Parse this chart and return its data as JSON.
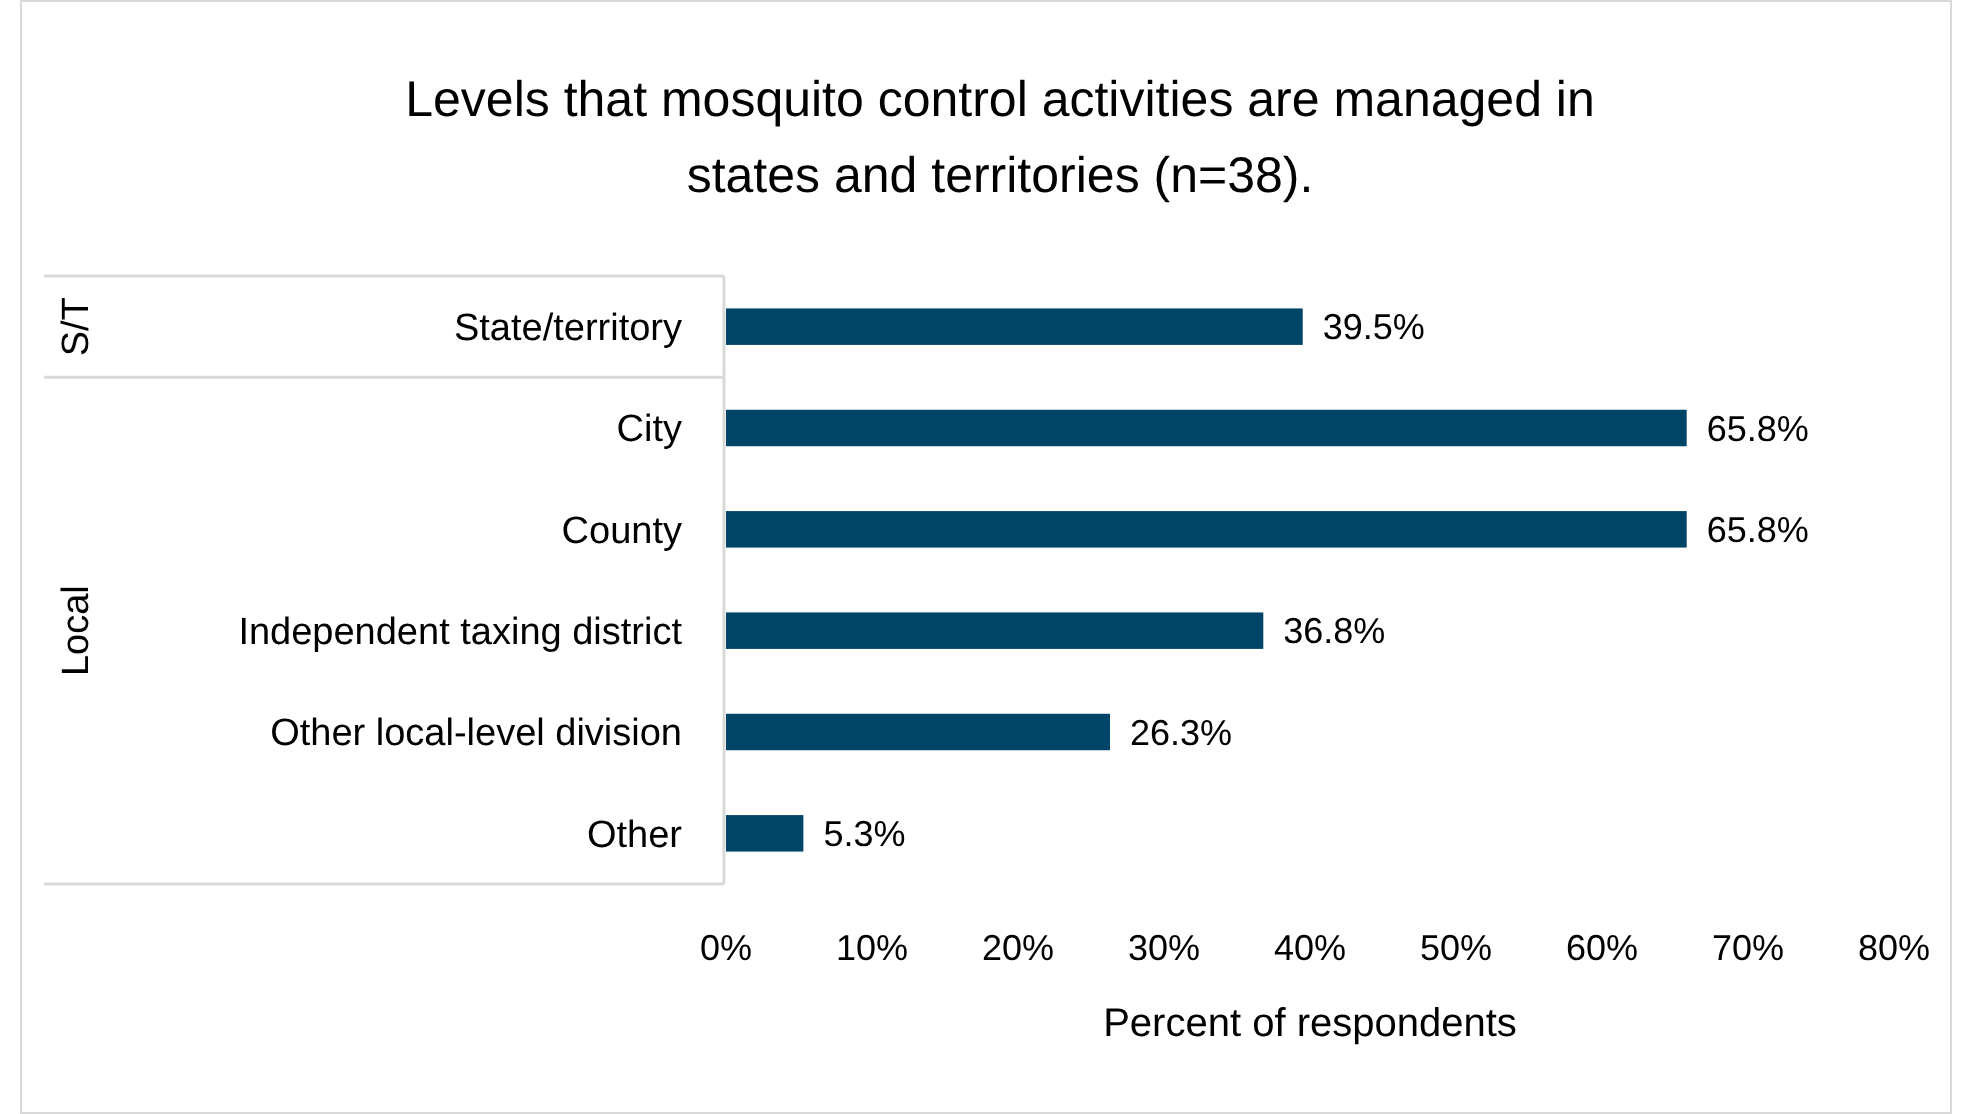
{
  "chart_data": {
    "type": "bar",
    "orientation": "horizontal",
    "title": "Levels that mosquito control activities are managed in states and territories (n=38).",
    "xlabel": "Percent of respondents",
    "categories": [
      "State/territory",
      "City",
      "County",
      "Independent taxing district",
      "Other local-level division",
      "Other"
    ],
    "values": [
      39.5,
      65.8,
      65.8,
      36.8,
      26.3,
      5.3
    ],
    "value_labels": [
      "39.5%",
      "65.8%",
      "65.8%",
      "36.8%",
      "26.3%",
      "5.3%"
    ],
    "color": "#004467",
    "xlim": [
      0,
      80
    ],
    "xticks": [
      {
        "value": 0,
        "label": "0%"
      },
      {
        "value": 10,
        "label": "10%"
      },
      {
        "value": 20,
        "label": "20%"
      },
      {
        "value": 30,
        "label": "30%"
      },
      {
        "value": 40,
        "label": "40%"
      },
      {
        "value": 50,
        "label": "50%"
      },
      {
        "value": 60,
        "label": "60%"
      },
      {
        "value": 70,
        "label": "70%"
      },
      {
        "value": 80,
        "label": "80%"
      }
    ],
    "annotations": [
      "S/T",
      "Local"
    ]
  }
}
